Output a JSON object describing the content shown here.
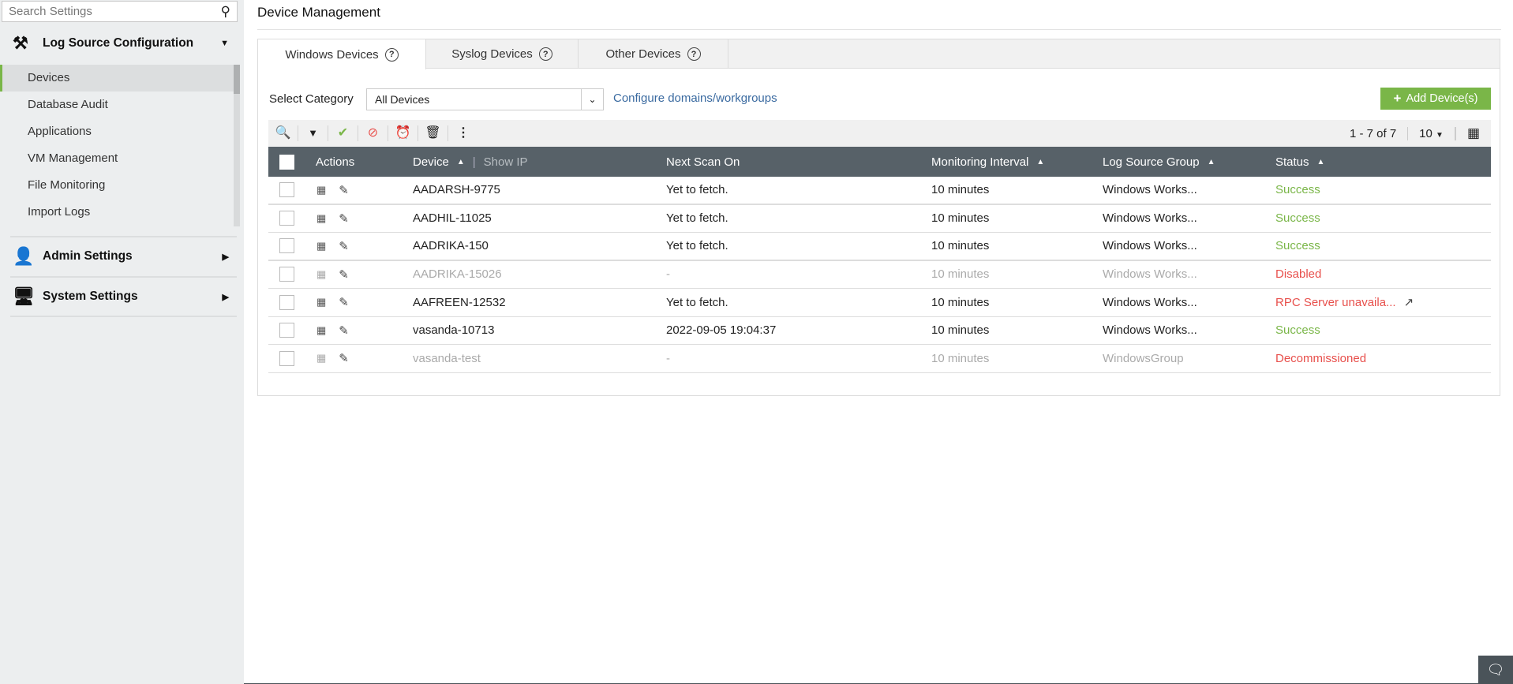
{
  "sidebar": {
    "search_placeholder": "Search Settings",
    "sections": [
      {
        "label": "Log Source Configuration",
        "icon": "tools-icon",
        "expanded": true
      },
      {
        "label": "Admin Settings",
        "icon": "user-gear-icon",
        "expanded": false
      },
      {
        "label": "System Settings",
        "icon": "monitor-gear-icon",
        "expanded": false
      }
    ],
    "items": [
      "Devices",
      "Database Audit",
      "Applications",
      "VM Management",
      "File Monitoring",
      "Import Logs"
    ],
    "active_item": "Devices"
  },
  "page": {
    "title": "Device Management"
  },
  "tabs": [
    "Windows Devices",
    "Syslog Devices",
    "Other Devices"
  ],
  "filters": {
    "select_label": "Select Category",
    "select_value": "All Devices",
    "configure_link": "Configure domains/workgroups",
    "add_button": "Add Device(s)"
  },
  "pagination": {
    "range": "1 - 7 of 7",
    "per_page": "10"
  },
  "table": {
    "columns": [
      "Actions",
      "Device",
      "Next Scan On",
      "Monitoring Interval",
      "Log Source Group",
      "Status"
    ],
    "show_ip": "Show IP",
    "rows": [
      {
        "device": "AADARSH-9775",
        "next_scan": "Yet to fetch.",
        "interval": "10 minutes",
        "group": "Windows Works...",
        "status": "Success",
        "state": "ok"
      },
      {
        "device": "AADHIL-11025",
        "next_scan": "Yet to fetch.",
        "interval": "10 minutes",
        "group": "Windows Works...",
        "status": "Success",
        "state": "ok"
      },
      {
        "device": "AADRIKA-150",
        "next_scan": "Yet to fetch.",
        "interval": "10 minutes",
        "group": "Windows Works...",
        "status": "Success",
        "state": "ok"
      },
      {
        "device": "AADRIKA-15026",
        "next_scan": "-",
        "interval": "10 minutes",
        "group": "Windows Works...",
        "status": "Disabled",
        "state": "disabled"
      },
      {
        "device": "AAFREEN-12532",
        "next_scan": "Yet to fetch.",
        "interval": "10 minutes",
        "group": "Windows Works...",
        "status": "RPC Server unavaila...",
        "state": "error"
      },
      {
        "device": "vasanda-10713",
        "next_scan": "2022-09-05 19:04:37",
        "interval": "10 minutes",
        "group": "Windows Works...",
        "status": "Success",
        "state": "ok"
      },
      {
        "device": "vasanda-test",
        "next_scan": "-",
        "interval": "10 minutes",
        "group": "WindowsGroup",
        "status": "Decommissioned",
        "state": "disabled"
      }
    ]
  },
  "colors": {
    "accent": "#7ab648",
    "error": "#e8504c",
    "header": "#576168",
    "link": "#3a6aa0"
  }
}
